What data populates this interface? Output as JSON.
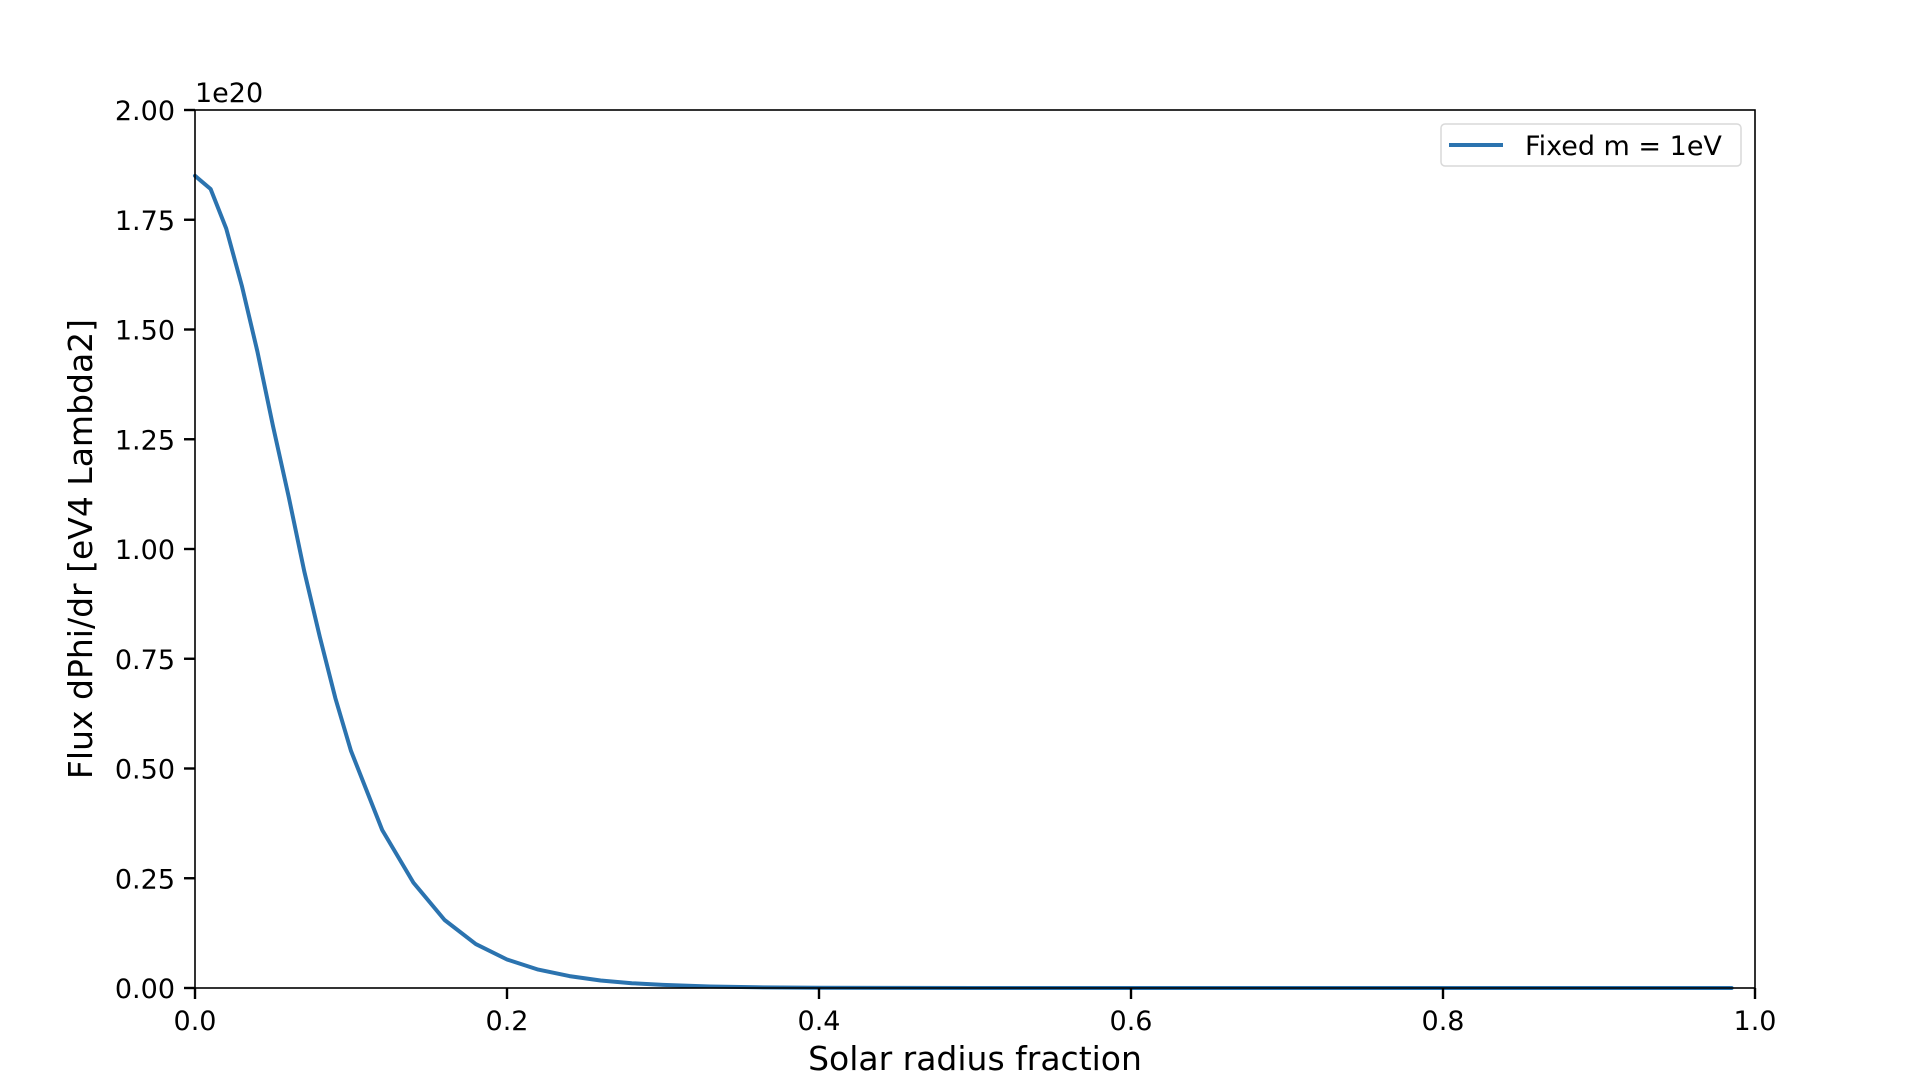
{
  "chart_data": {
    "type": "line",
    "xlabel": "Solar radius fraction",
    "ylabel": "Flux dPhi/dr [eV4 Lambda2]",
    "offset_label": "1e20",
    "xlim": [
      0.0,
      1.0
    ],
    "ylim": [
      0.0,
      2.0
    ],
    "xticks": [
      "0.0",
      "0.2",
      "0.4",
      "0.6",
      "0.8",
      "1.0"
    ],
    "yticks": [
      "0.00",
      "0.25",
      "0.50",
      "0.75",
      "1.00",
      "1.25",
      "1.50",
      "1.75",
      "2.00"
    ],
    "grid": false,
    "legend_position": "top-right",
    "series": [
      {
        "name": "Fixed m = 1eV",
        "color": "#2b73af",
        "x": [
          0.0,
          0.01,
          0.02,
          0.03,
          0.04,
          0.05,
          0.06,
          0.07,
          0.08,
          0.09,
          0.1,
          0.12,
          0.14,
          0.16,
          0.18,
          0.2,
          0.22,
          0.24,
          0.26,
          0.28,
          0.3,
          0.33,
          0.36,
          0.4,
          0.45,
          0.5,
          0.6,
          0.7,
          0.8,
          0.9,
          0.985
        ],
        "y": [
          1.85,
          1.82,
          1.73,
          1.6,
          1.45,
          1.28,
          1.12,
          0.95,
          0.8,
          0.66,
          0.54,
          0.36,
          0.24,
          0.155,
          0.1,
          0.065,
          0.042,
          0.027,
          0.017,
          0.011,
          0.007,
          0.0035,
          0.0017,
          0.0006,
          0.0002,
          0.0001,
          0.0,
          0.0,
          0.0,
          0.0,
          0.0
        ]
      }
    ]
  }
}
